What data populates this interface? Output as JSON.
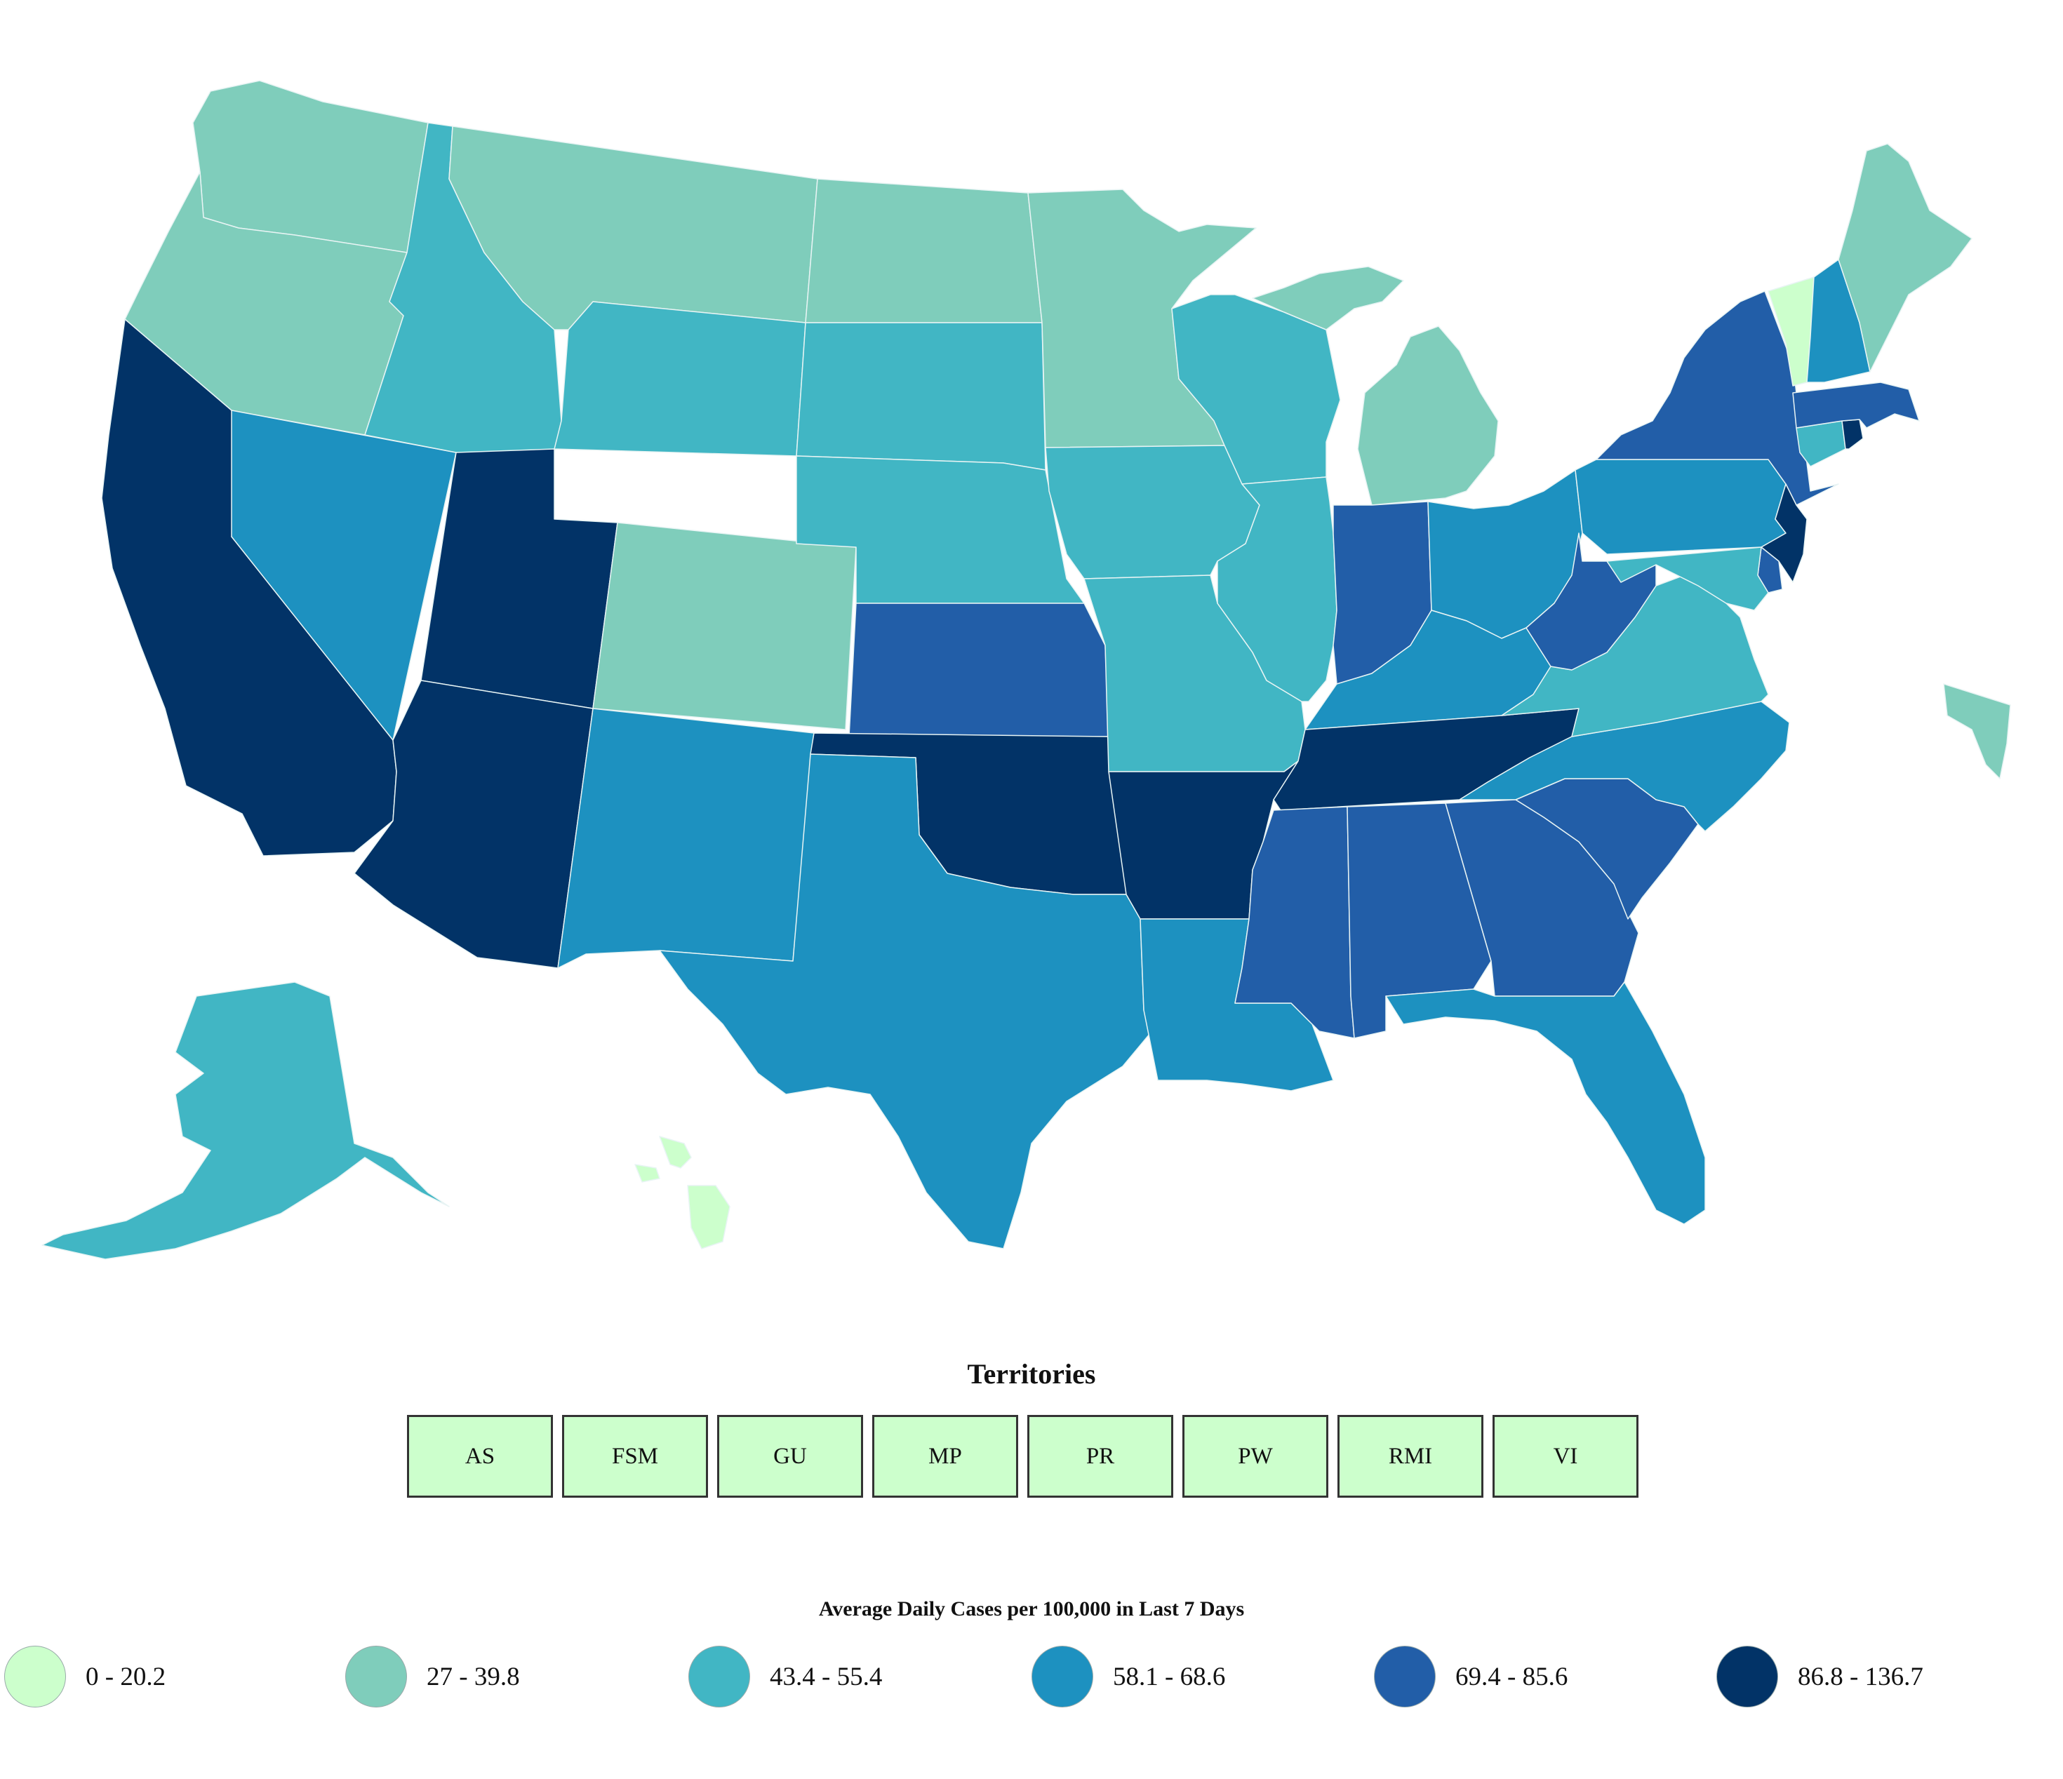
{
  "colors": {
    "bin_0": "#ccffcc",
    "bin_1": "#7fcdbb",
    "bin_2": "#41b6c4",
    "bin_3": "#1d91c0",
    "bin_4": "#225ea8",
    "bin_5": "#023367",
    "button_fill": "#ccffcc",
    "button_border": "#333333"
  },
  "states": [
    {
      "id": "WA",
      "bin": 1
    },
    {
      "id": "OR",
      "bin": 1
    },
    {
      "id": "CA",
      "bin": 5
    },
    {
      "id": "NV",
      "bin": 3
    },
    {
      "id": "ID",
      "bin": 2
    },
    {
      "id": "MT",
      "bin": 1
    },
    {
      "id": "WY",
      "bin": 2
    },
    {
      "id": "UT",
      "bin": 5
    },
    {
      "id": "AZ",
      "bin": 5
    },
    {
      "id": "CO",
      "bin": 1
    },
    {
      "id": "NM",
      "bin": 3
    },
    {
      "id": "ND",
      "bin": 1
    },
    {
      "id": "SD",
      "bin": 2
    },
    {
      "id": "NE",
      "bin": 2
    },
    {
      "id": "KS",
      "bin": 4
    },
    {
      "id": "OK",
      "bin": 5
    },
    {
      "id": "TX",
      "bin": 3
    },
    {
      "id": "MN",
      "bin": 1
    },
    {
      "id": "IA",
      "bin": 2
    },
    {
      "id": "MO",
      "bin": 2
    },
    {
      "id": "AR",
      "bin": 5
    },
    {
      "id": "LA",
      "bin": 3
    },
    {
      "id": "WI",
      "bin": 2
    },
    {
      "id": "MI",
      "bin": 1
    },
    {
      "id": "IL",
      "bin": 2
    },
    {
      "id": "IN",
      "bin": 4
    },
    {
      "id": "OH",
      "bin": 3
    },
    {
      "id": "KY",
      "bin": 3
    },
    {
      "id": "TN",
      "bin": 5
    },
    {
      "id": "MS",
      "bin": 4
    },
    {
      "id": "AL",
      "bin": 4
    },
    {
      "id": "GA",
      "bin": 4
    },
    {
      "id": "FL",
      "bin": 3
    },
    {
      "id": "SC",
      "bin": 4
    },
    {
      "id": "NC",
      "bin": 3
    },
    {
      "id": "VA",
      "bin": 2
    },
    {
      "id": "WV",
      "bin": 4
    },
    {
      "id": "PA",
      "bin": 3
    },
    {
      "id": "NY",
      "bin": 4
    },
    {
      "id": "NJ",
      "bin": 5
    },
    {
      "id": "DE",
      "bin": 4
    },
    {
      "id": "MD",
      "bin": 2
    },
    {
      "id": "CT",
      "bin": 2
    },
    {
      "id": "RI",
      "bin": 5
    },
    {
      "id": "MA",
      "bin": 4
    },
    {
      "id": "VT",
      "bin": 0
    },
    {
      "id": "NH",
      "bin": 3
    },
    {
      "id": "ME",
      "bin": 1
    },
    {
      "id": "AK",
      "bin": 2
    },
    {
      "id": "HI",
      "bin": 0
    },
    {
      "id": "PR",
      "bin": 1
    }
  ],
  "territories": {
    "title": "Territories",
    "items": [
      "AS",
      "FSM",
      "GU",
      "MP",
      "PR",
      "PW",
      "RMI",
      "VI"
    ]
  },
  "legend": {
    "title": "Average Daily Cases per 100,000 in Last 7 Days",
    "items": [
      {
        "label": "0 - 20.2",
        "bin": 0
      },
      {
        "label": "27 - 39.8",
        "bin": 1
      },
      {
        "label": "43.4 - 55.4",
        "bin": 2
      },
      {
        "label": "58.1 - 68.6",
        "bin": 3
      },
      {
        "label": "69.4 - 85.6",
        "bin": 4
      },
      {
        "label": "86.8 - 136.7",
        "bin": 5
      }
    ]
  }
}
